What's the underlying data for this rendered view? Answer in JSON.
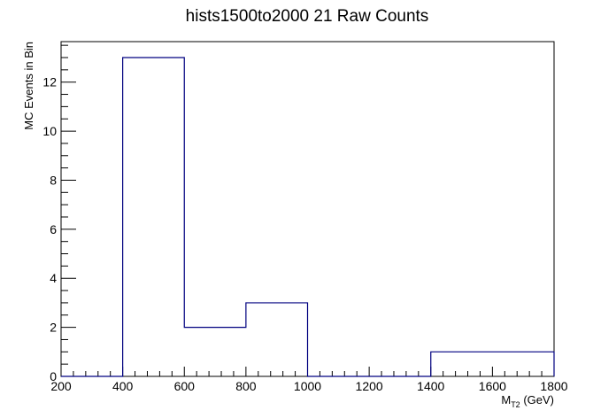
{
  "chart_data": {
    "type": "bar",
    "style": "step-histogram",
    "title": "hists1500to2000 21 Raw Counts",
    "xlabel_main": "M",
    "xlabel_sub": "T2",
    "xlabel_unit": " (GeV)",
    "ylabel": "MC Events in Bin",
    "xlim": [
      200,
      1800
    ],
    "ylim": [
      0,
      13.65
    ],
    "x_ticks": [
      200,
      400,
      600,
      800,
      1000,
      1200,
      1400,
      1600,
      1800
    ],
    "y_ticks": [
      0,
      2,
      4,
      6,
      8,
      10,
      12
    ],
    "bin_edges": [
      200,
      400,
      600,
      800,
      1000,
      1200,
      1400,
      1600,
      1800
    ],
    "values": [
      0,
      13,
      2,
      3,
      0,
      0,
      1,
      1
    ],
    "line_color": "#000080",
    "grid": false,
    "legend": "none"
  }
}
